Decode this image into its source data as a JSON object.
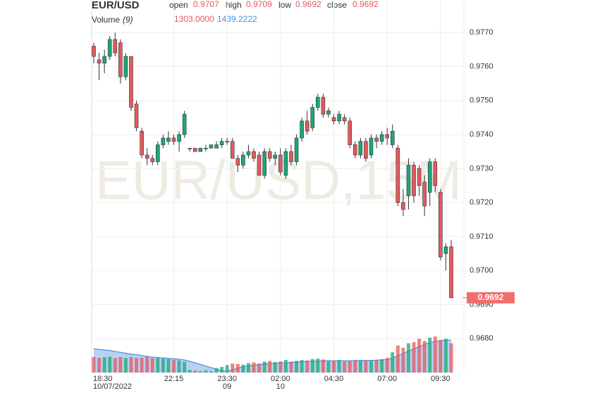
{
  "chart_data": {
    "type": "candlestick",
    "title": "EUR/USD",
    "watermark": "EUR/USD,15M",
    "header": {
      "fields": [
        {
          "label": "open",
          "value": "0.9707"
        },
        {
          "label": "high",
          "value": "0.9709"
        },
        {
          "label": "low",
          "value": "0.9692"
        },
        {
          "label": "close",
          "value": "0.9692"
        }
      ],
      "volume_label": "Volume",
      "volume_period": "(9)",
      "volume_value": "1303.0000",
      "volume_ma_value": "1439.2222"
    },
    "categories": [
      "18:30",
      null,
      null,
      null,
      null,
      null,
      null,
      null,
      null,
      null,
      null,
      null,
      null,
      null,
      null,
      "22:15",
      null,
      null,
      null,
      null,
      null,
      null,
      null,
      null,
      null,
      "23:30",
      null,
      null,
      null,
      null,
      null,
      null,
      null,
      null,
      null,
      "02:00",
      null,
      null,
      null,
      null,
      null,
      null,
      null,
      null,
      null,
      "04:30",
      null,
      null,
      null,
      null,
      null,
      null,
      null,
      null,
      null,
      "07:00",
      null,
      null,
      null,
      null,
      null,
      null,
      null,
      null,
      null,
      "09:30",
      null,
      null
    ],
    "category_sublabels": [
      "10/07/2022",
      null,
      null,
      null,
      null,
      null,
      null,
      null,
      null,
      null,
      null,
      null,
      null,
      null,
      null,
      null,
      null,
      null,
      null,
      null,
      null,
      null,
      null,
      null,
      null,
      "09",
      null,
      null,
      null,
      null,
      null,
      null,
      null,
      null,
      null,
      "10",
      null,
      null,
      null,
      null,
      null,
      null,
      null,
      null,
      null,
      null,
      null,
      null,
      null,
      null,
      null,
      null,
      null,
      null,
      null,
      null,
      null,
      null,
      null,
      null,
      null,
      null,
      null,
      null,
      null,
      null,
      null,
      null
    ],
    "open": [
      0.9766,
      0.9762,
      0.9761,
      0.9763,
      0.9768,
      0.9767,
      0.9757,
      0.9763,
      0.9749,
      0.9741,
      0.9734,
      0.9733,
      0.9732,
      0.9737,
      0.9738,
      0.9739,
      0.9738,
      0.974,
      0.9736,
      0.9736,
      0.9735,
      0.9736,
      0.9736,
      0.9736,
      0.9737,
      0.9738,
      0.9738,
      0.9733,
      0.9731,
      0.9734,
      0.9735,
      0.9734,
      0.9728,
      0.9735,
      0.9733,
      0.9734,
      0.9728,
      0.9735,
      0.9732,
      0.9739,
      0.9744,
      0.9742,
      0.9748,
      0.9751,
      0.9746,
      0.9745,
      0.9744,
      0.9745,
      0.9744,
      0.9737,
      0.9734,
      0.9738,
      0.9734,
      0.9739,
      0.9738,
      0.974,
      0.9737,
      0.9736,
      0.972,
      0.9722,
      0.9731,
      0.973,
      0.9726,
      0.9723,
      0.9732,
      0.9723,
      0.9705,
      0.9707
    ],
    "high": [
      0.9767,
      0.9764,
      0.9765,
      0.9769,
      0.977,
      0.9768,
      0.9764,
      0.9763,
      0.975,
      0.9742,
      0.9736,
      0.9734,
      0.9738,
      0.974,
      0.9741,
      0.974,
      0.9741,
      0.9747,
      0.9736,
      0.9736,
      0.9736,
      0.9737,
      0.9737,
      0.9738,
      0.9739,
      0.9739,
      0.9739,
      0.9734,
      0.9735,
      0.9737,
      0.9736,
      0.9735,
      0.9736,
      0.9736,
      0.9735,
      0.9736,
      0.9736,
      0.9737,
      0.974,
      0.9745,
      0.9747,
      0.9749,
      0.9752,
      0.9752,
      0.9748,
      0.9746,
      0.9747,
      0.9746,
      0.9745,
      0.9738,
      0.9739,
      0.9739,
      0.974,
      0.974,
      0.9741,
      0.9742,
      0.9743,
      0.9737,
      0.9724,
      0.9733,
      0.9732,
      0.9731,
      0.9728,
      0.9733,
      0.9733,
      0.9724,
      0.9708,
      0.9709
    ],
    "low": [
      0.9761,
      0.9756,
      0.9758,
      0.9762,
      0.9763,
      0.9755,
      0.9756,
      0.9747,
      0.9741,
      0.9733,
      0.9731,
      0.9731,
      0.9731,
      0.9736,
      0.9737,
      0.9737,
      0.9735,
      0.9739,
      0.9735,
      0.9735,
      0.9735,
      0.9735,
      0.9736,
      0.9736,
      0.9736,
      0.9737,
      0.9733,
      0.9729,
      0.973,
      0.9733,
      0.9732,
      0.9728,
      0.9727,
      0.9732,
      0.9731,
      0.9728,
      0.9727,
      0.9731,
      0.9731,
      0.9738,
      0.974,
      0.9741,
      0.9747,
      0.9745,
      0.9745,
      0.9743,
      0.9743,
      0.9743,
      0.9736,
      0.9733,
      0.9733,
      0.9732,
      0.9733,
      0.9736,
      0.9737,
      0.9737,
      0.9736,
      0.9719,
      0.9716,
      0.9718,
      0.972,
      0.9722,
      0.9716,
      0.9719,
      0.9723,
      0.9703,
      0.97,
      0.9692
    ],
    "close": [
      0.9763,
      0.9761,
      0.9763,
      0.9768,
      0.9764,
      0.9757,
      0.9763,
      0.9748,
      0.9742,
      0.9734,
      0.9733,
      0.9732,
      0.9737,
      0.9739,
      0.9739,
      0.9738,
      0.974,
      0.9746,
      0.9736,
      0.9735,
      0.9736,
      0.9736,
      0.9737,
      0.9737,
      0.9738,
      0.9738,
      0.9733,
      0.9731,
      0.9734,
      0.9735,
      0.9733,
      0.9728,
      0.9735,
      0.9733,
      0.9734,
      0.9729,
      0.9735,
      0.9732,
      0.9739,
      0.9744,
      0.9741,
      0.9748,
      0.9751,
      0.9746,
      0.9747,
      0.9744,
      0.9746,
      0.9744,
      0.9737,
      0.9734,
      0.9738,
      0.9733,
      0.9739,
      0.9738,
      0.974,
      0.9739,
      0.9741,
      0.972,
      0.9718,
      0.9731,
      0.9722,
      0.9725,
      0.9719,
      0.9732,
      0.9725,
      0.9704,
      0.9707,
      0.9692
    ],
    "up_color": "#1da67a",
    "down_color": "#e25a5c",
    "volume": {
      "values": [
        690,
        650,
        680,
        700,
        640,
        690,
        650,
        690,
        650,
        660,
        700,
        640,
        650,
        620,
        600,
        560,
        540,
        480,
        120,
        90,
        60,
        100,
        60,
        200,
        250,
        330,
        400,
        380,
        350,
        420,
        450,
        400,
        480,
        520,
        470,
        500,
        560,
        490,
        520,
        560,
        540,
        600,
        620,
        580,
        500,
        520,
        560,
        480,
        500,
        560,
        520,
        540,
        520,
        560,
        600,
        650,
        900,
        1200,
        1100,
        1300,
        1350,
        1500,
        1400,
        1550,
        1600,
        1450,
        1500,
        1303
      ]
    },
    "volume_ma": {
      "color": "#4a8ee0",
      "values": [
        1050,
        1030,
        1000,
        980,
        940,
        900,
        860,
        820,
        790,
        760,
        720,
        690,
        670,
        650,
        630,
        610,
        590,
        560,
        500,
        430,
        360,
        290,
        220,
        150,
        80,
        60,
        120,
        200,
        260,
        300,
        330,
        360,
        380,
        400,
        410,
        420,
        430,
        450,
        470,
        480,
        490,
        500,
        510,
        520,
        530,
        520,
        520,
        520,
        520,
        530,
        540,
        540,
        540,
        550,
        560,
        580,
        650,
        750,
        850,
        950,
        1050,
        1150,
        1250,
        1330,
        1380,
        1420,
        1440,
        1439.2222
      ]
    },
    "vlim": [
      0,
      5000
    ],
    "ylim": [
      0.967,
      0.978
    ],
    "yticks": [
      {
        "value": 0.968,
        "label": "0.9680"
      },
      {
        "value": 0.969,
        "label": "0.9690"
      },
      {
        "value": 0.97,
        "label": "0.9700"
      },
      {
        "value": 0.971,
        "label": "0.9710"
      },
      {
        "value": 0.972,
        "label": "0.9720"
      },
      {
        "value": 0.973,
        "label": "0.9730"
      },
      {
        "value": 0.974,
        "label": "0.9740"
      },
      {
        "value": 0.975,
        "label": "0.9750"
      },
      {
        "value": 0.976,
        "label": "0.9760"
      },
      {
        "value": 0.977,
        "label": "0.9770"
      }
    ],
    "last_price_label": "0.9692",
    "grid": true
  }
}
